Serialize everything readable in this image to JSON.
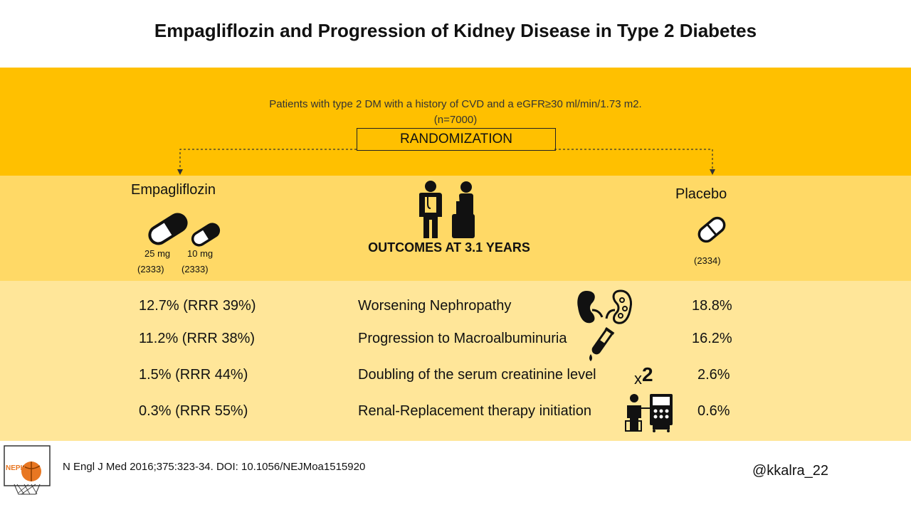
{
  "title": "Empagliflozin and Progression of Kidney Disease in Type 2 Diabetes",
  "population": {
    "line1": "Patients with type 2 DM with a history of CVD and a eGFR≥30 ml/min/1.73 m2.",
    "line2": "(n=7000)"
  },
  "randomization": "RANDOMIZATION",
  "arms": {
    "empagliflozin": {
      "label": "Empagliflozin",
      "dose_25": "25 mg",
      "dose_10": "10 mg",
      "n_25": "(2333)",
      "n_10": "(2333)"
    },
    "placebo": {
      "label": "Placebo",
      "n": "(2334)"
    }
  },
  "outcomes_heading": "OUTCOMES AT 3.1 YEARS",
  "outcomes": [
    {
      "empagliflozin": "12.7% (RRR 39%)",
      "name": "Worsening Nephropathy",
      "placebo": "18.8%",
      "icon": "kidney-icon"
    },
    {
      "empagliflozin": "11.2% (RRR 38%)",
      "name": "Progression to Macroalbuminuria",
      "placebo": "16.2%",
      "icon": "test-tube-icon"
    },
    {
      "empagliflozin": "1.5%  (RRR 44%)",
      "name": "Doubling of the serum creatinine level",
      "placebo": "2.6%",
      "icon": "times-two-icon"
    },
    {
      "empagliflozin": "0.3% (RRR 55%)",
      "name": "Renal-Replacement therapy initiation",
      "placebo": "0.6%",
      "icon": "dialysis-icon"
    }
  ],
  "times_two": {
    "x": "x",
    "two": "2"
  },
  "footer": {
    "reference": "N Engl J Med 2016;375:323-34. DOI: 10.1056/NEJMoa1515920",
    "handle": "@kkalra_22",
    "logo_text": "NEPH"
  },
  "colors": {
    "band_top": "#FFC000",
    "band_mid": "#FFD966",
    "band_low": "#FFE699",
    "logo_accent": "#E87722"
  }
}
